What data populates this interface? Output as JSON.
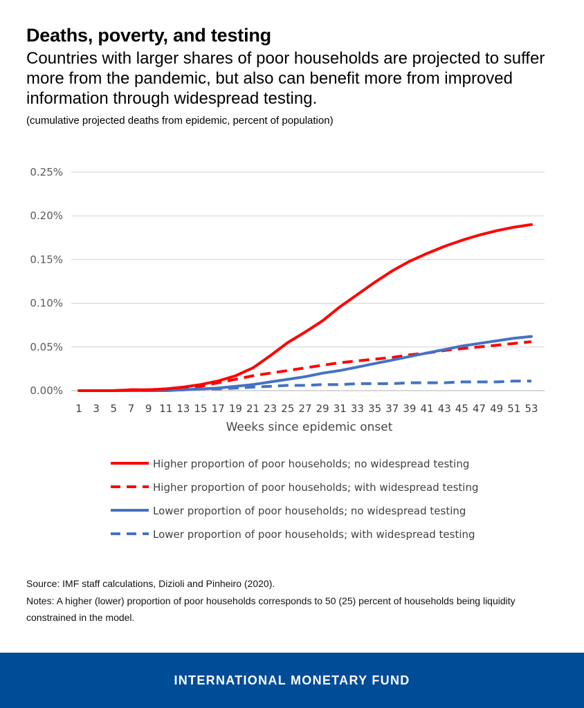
{
  "header": {
    "title": "Deaths, poverty, and testing",
    "subtitle": "Countries with larger shares of poor households are projected to suffer more from the pandemic, but also can benefit more from improved information through widespread testing.",
    "units": "(cumulative projected deaths from epidemic, percent of population)"
  },
  "chart_data": {
    "type": "line",
    "xlabel": "Weeks since epidemic onset",
    "ylabel": "",
    "ylim": [
      0,
      0.25
    ],
    "yticks": [
      "0.00%",
      "0.05%",
      "0.10%",
      "0.15%",
      "0.20%",
      "0.25%"
    ],
    "x": [
      1,
      3,
      5,
      7,
      9,
      11,
      13,
      15,
      17,
      19,
      21,
      23,
      25,
      27,
      29,
      31,
      33,
      35,
      37,
      39,
      41,
      43,
      45,
      47,
      49,
      51,
      53
    ],
    "grid": true,
    "legend_position": "bottom",
    "series": [
      {
        "name": "Higher proportion of poor households; no widespread testing",
        "color": "#ff0000",
        "dash": false,
        "values": [
          0,
          0,
          0,
          0.001,
          0.001,
          0.002,
          0.004,
          0.007,
          0.011,
          0.017,
          0.026,
          0.04,
          0.055,
          0.067,
          0.08,
          0.096,
          0.11,
          0.124,
          0.137,
          0.148,
          0.157,
          0.165,
          0.172,
          0.178,
          0.183,
          0.187,
          0.19
        ]
      },
      {
        "name": "Higher proportion of poor households; with widespread testing",
        "color": "#ff0000",
        "dash": true,
        "values": [
          0,
          0,
          0,
          0.001,
          0.001,
          0.002,
          0.003,
          0.005,
          0.009,
          0.013,
          0.017,
          0.02,
          0.023,
          0.026,
          0.029,
          0.032,
          0.034,
          0.036,
          0.038,
          0.041,
          0.043,
          0.046,
          0.048,
          0.05,
          0.052,
          0.054,
          0.056
        ]
      },
      {
        "name": "Lower proportion of poor households; no widespread testing",
        "color": "#4472c4",
        "dash": false,
        "values": [
          0,
          0,
          0,
          0,
          0,
          0,
          0.001,
          0.002,
          0.003,
          0.005,
          0.007,
          0.01,
          0.013,
          0.016,
          0.02,
          0.023,
          0.027,
          0.031,
          0.035,
          0.039,
          0.043,
          0.047,
          0.051,
          0.054,
          0.057,
          0.06,
          0.062
        ]
      },
      {
        "name": "Lower proportion of poor households; with widespread testing",
        "color": "#4472c4",
        "dash": true,
        "values": [
          0,
          0,
          0,
          0,
          0,
          0,
          0.001,
          0.002,
          0.002,
          0.003,
          0.004,
          0.005,
          0.006,
          0.006,
          0.007,
          0.007,
          0.008,
          0.008,
          0.008,
          0.009,
          0.009,
          0.009,
          0.01,
          0.01,
          0.01,
          0.011,
          0.011
        ]
      }
    ]
  },
  "footnotes": {
    "source": "Source: IMF staff calculations, Dizioli and Pinheiro (2020).",
    "notes": "Notes: A higher (lower) proportion of poor households corresponds to 50 (25) percent of households being liquidity constrained in the model."
  },
  "footer": {
    "brand": "INTERNATIONAL MONETARY FUND",
    "color": "#004c97"
  }
}
